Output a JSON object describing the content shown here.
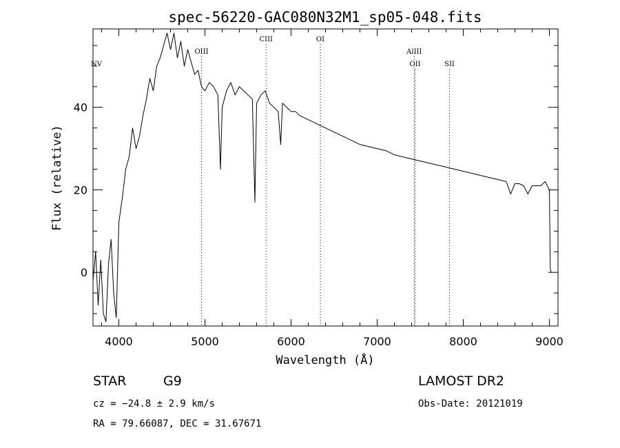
{
  "chart_data": {
    "type": "line",
    "title": "spec-56220-GAC080N32M1_sp05-048.fits",
    "xlabel": "Wavelength (Å)",
    "ylabel": "Flux (relative)",
    "xlim": [
      3700,
      9100
    ],
    "ylim": [
      -13,
      59
    ],
    "x_ticks": [
      4000,
      5000,
      6000,
      7000,
      8000,
      9000
    ],
    "y_ticks": [
      0,
      20,
      40
    ],
    "grid": false,
    "line_color": "#000000",
    "series": [
      {
        "x": [
          3700,
          3730,
          3760,
          3790,
          3820,
          3850,
          3880,
          3910,
          3940,
          3970,
          4000,
          4040,
          4080,
          4120,
          4160,
          4200,
          4240,
          4280,
          4320,
          4360,
          4400,
          4440,
          4480,
          4520,
          4560,
          4600,
          4640,
          4680,
          4720,
          4760,
          4800,
          4840,
          4880,
          4920,
          4960,
          5000,
          5050,
          5100,
          5150,
          5180,
          5200,
          5250,
          5300,
          5350,
          5400,
          5450,
          5500,
          5550,
          5580,
          5600,
          5650,
          5700,
          5750,
          5800,
          5850,
          5880,
          5900,
          5950,
          6000,
          6050,
          6100,
          6200,
          6300,
          6400,
          6500,
          6600,
          6700,
          6800,
          6900,
          7000,
          7100,
          7200,
          7300,
          7400,
          7500,
          7600,
          7700,
          7800,
          7900,
          8000,
          8100,
          8200,
          8300,
          8400,
          8500,
          8550,
          8600,
          8650,
          8700,
          8750,
          8800,
          8850,
          8900,
          8950,
          9000,
          9010,
          9020
        ],
        "y": [
          -2,
          5,
          -8,
          3,
          -10,
          -12,
          2,
          8,
          -5,
          -11,
          12,
          18,
          25,
          28,
          35,
          30,
          33,
          38,
          42,
          47,
          44,
          50,
          52,
          55,
          58,
          54,
          58,
          52,
          56,
          50,
          54,
          51,
          48,
          49,
          45,
          44,
          46,
          45,
          43,
          25,
          40,
          44,
          46,
          43,
          45,
          44,
          43,
          42,
          17,
          41,
          43,
          44,
          41,
          40,
          39,
          31,
          41,
          40,
          39,
          39,
          38,
          37,
          36,
          35,
          34,
          33,
          32,
          31,
          30.5,
          30,
          29.5,
          28.5,
          28,
          27.5,
          27,
          26.5,
          26,
          25.5,
          25,
          24.5,
          24,
          23.5,
          23,
          22.5,
          22,
          19,
          21.5,
          21.5,
          21,
          19,
          21,
          21,
          21,
          22,
          20,
          1,
          0
        ]
      }
    ],
    "spectral_lines": [
      {
        "label": "NV",
        "x": 3740,
        "row": 3
      },
      {
        "label": "OIII",
        "x": 4960,
        "row": 2
      },
      {
        "label": "CIII",
        "x": 5710,
        "row": 1
      },
      {
        "label": "OI",
        "x": 6340,
        "row": 1
      },
      {
        "label": "AlIII",
        "x": 7430,
        "row": 2
      },
      {
        "label": "OII",
        "x": 7440,
        "row": 3
      },
      {
        "label": "SII",
        "x": 7840,
        "row": 3
      }
    ]
  },
  "info": {
    "object_type": "STAR",
    "subclass": "G9",
    "survey": "LAMOST DR2",
    "cz": "cz = −24.8 ± 2.9 km/s",
    "obs_date": "Obs-Date: 20121019",
    "coords": "RA =  79.66087, DEC =  31.67671"
  }
}
